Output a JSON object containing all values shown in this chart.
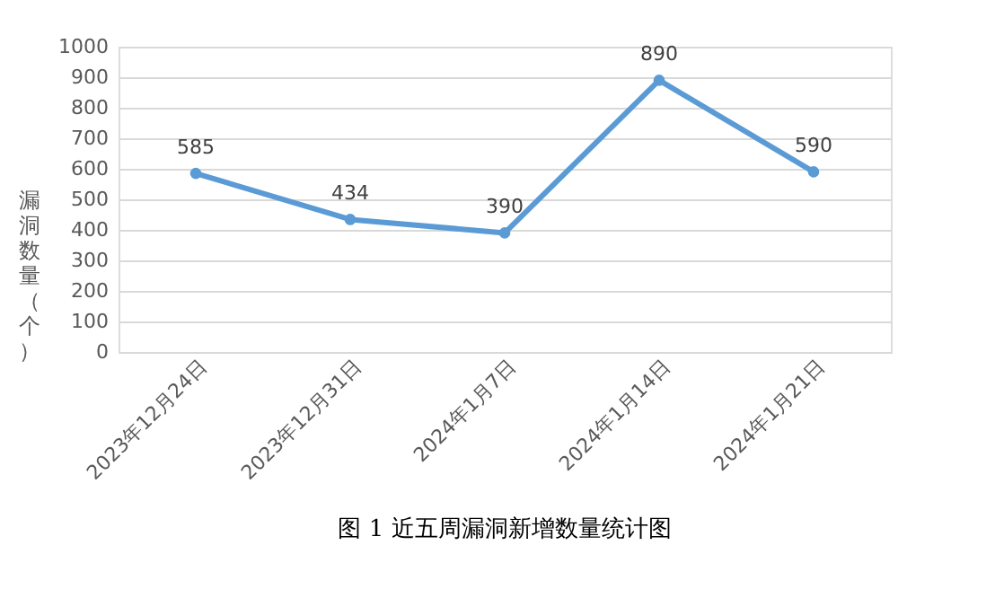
{
  "chart_data": {
    "type": "line",
    "title": "图 1  近五周漏洞新增数量统计图",
    "ylabel": "漏洞数量（个）",
    "categories": [
      "2023年12月24日",
      "2023年12月31日",
      "2024年1月7日",
      "2024年1月14日",
      "2024年1月21日"
    ],
    "series": [
      {
        "color": "#5b9bd5",
        "values": [
          585,
          434,
          390,
          890,
          590
        ]
      }
    ],
    "ylim": [
      0,
      1000
    ],
    "yticks": [
      0,
      100,
      200,
      300,
      400,
      500,
      600,
      700,
      800,
      900,
      1000
    ],
    "grid": "y",
    "marker": "circle",
    "line_style": "solid",
    "data_labels": true
  }
}
